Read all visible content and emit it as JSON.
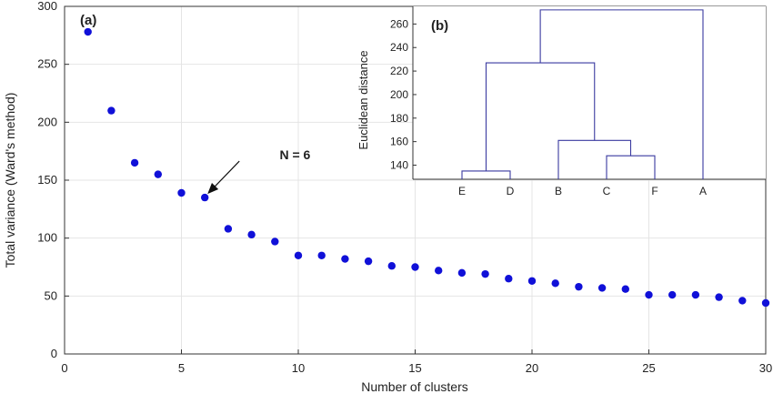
{
  "chart_data": [
    {
      "type": "scatter",
      "panel_label": "(a)",
      "xlabel": "Number of clusters",
      "ylabel": "Total variance (Ward's method)",
      "xlim": [
        0,
        30
      ],
      "ylim": [
        0,
        300
      ],
      "xticks": [
        0,
        5,
        10,
        15,
        20,
        25,
        30
      ],
      "yticks": [
        0,
        50,
        100,
        150,
        200,
        250,
        300
      ],
      "grid": true,
      "marker_color": "#1010d8",
      "x": [
        1,
        2,
        3,
        4,
        5,
        6,
        7,
        8,
        9,
        10,
        11,
        12,
        13,
        14,
        15,
        16,
        17,
        18,
        19,
        20,
        21,
        22,
        23,
        24,
        25,
        26,
        27,
        28,
        29,
        30
      ],
      "y": [
        278,
        210,
        165,
        155,
        139,
        135,
        108,
        103,
        97,
        85,
        85,
        82,
        80,
        76,
        75,
        72,
        70,
        69,
        65,
        63,
        61,
        58,
        57,
        56,
        51,
        51,
        51,
        49,
        46,
        44
      ],
      "annotation": {
        "text": "N = 6",
        "x": 6,
        "y": 135,
        "text_x": 9.2,
        "text_y": 168
      }
    },
    {
      "type": "dendrogram",
      "panel_label": "(b)",
      "ylabel": "Euclidean distance",
      "xlabel": "",
      "ylim": [
        128,
        275
      ],
      "yticks": [
        140,
        160,
        180,
        200,
        220,
        240,
        260
      ],
      "leaves": [
        "E",
        "D",
        "B",
        "C",
        "F",
        "A"
      ],
      "line_color": "#3a3aa0",
      "merges": [
        {
          "left": 0,
          "right": 1,
          "height": 135,
          "left_height": 128,
          "right_height": 128
        },
        {
          "left": 3,
          "right": 4,
          "height": 148,
          "left_height": 128,
          "right_height": 128
        },
        {
          "left": 2,
          "right": 3.5,
          "height": 161,
          "left_height": 128,
          "right_height": 148
        },
        {
          "left": 0.5,
          "right": 2.75,
          "height": 227,
          "left_height": 135,
          "right_height": 161
        },
        {
          "left": 1.625,
          "right": 5,
          "height": 272,
          "left_height": 227,
          "right_height": 128
        }
      ]
    }
  ]
}
